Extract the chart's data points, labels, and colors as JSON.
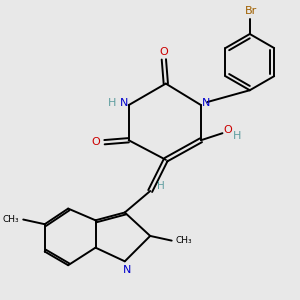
{
  "background_color": "#e8e8e8",
  "bond_color": "#000000",
  "atom_colors": {
    "N": "#0000cc",
    "O": "#cc0000",
    "H": "#5f9ea0",
    "Br": "#a06000",
    "C": "#000000"
  }
}
